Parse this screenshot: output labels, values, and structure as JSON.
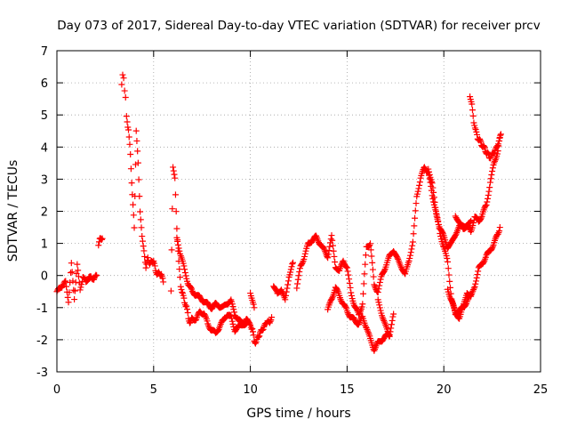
{
  "chart_data": {
    "type": "scatter",
    "title": "Day 073 of 2017, Sidereal Day-to-day VTEC variation (SDTVAR) for receiver prcv",
    "xlabel": "GPS time / hours",
    "ylabel": "SDTVAR / TECUs",
    "xlim": [
      0,
      25
    ],
    "ylim": [
      -3,
      7
    ],
    "xticks": [
      "0",
      "5",
      "10",
      "15",
      "20",
      "25"
    ],
    "yticks": [
      "-3",
      "-2",
      "-1",
      "0",
      "1",
      "2",
      "3",
      "4",
      "5",
      "6",
      "7"
    ],
    "grid": true,
    "marker": "+",
    "colors": {
      "points": "#ff0000",
      "grid": "#a0a0a0",
      "axis": "#000000"
    },
    "series": [
      {
        "name": "SDTVAR",
        "segments": [
          {
            "x": [
              0.0,
              0.15,
              0.3,
              0.45,
              0.6,
              0.75,
              0.9,
              1.05,
              1.2,
              1.35,
              1.5,
              1.65,
              1.8,
              1.95,
              2.05
            ],
            "y": [
              -0.5,
              -0.4,
              -0.3,
              -0.2,
              -0.8,
              0.35,
              -0.7,
              0.3,
              -0.4,
              -0.1,
              -0.15,
              -0.1,
              -0.05,
              -0.1,
              0.0
            ]
          },
          {
            "x": [
              2.15,
              2.25,
              2.35
            ],
            "y": [
              0.9,
              1.2,
              1.15
            ]
          },
          {
            "x": [
              3.35,
              3.4,
              3.45,
              3.5,
              3.55,
              3.6,
              3.7,
              3.8,
              3.9,
              4.0,
              4.1,
              4.2,
              4.3,
              4.4,
              4.5,
              4.6,
              4.7,
              4.8,
              4.9,
              5.0,
              5.1,
              5.2,
              5.3,
              5.4,
              5.5
            ],
            "y": [
              5.9,
              6.3,
              6.1,
              5.8,
              5.5,
              5.0,
              4.5,
              3.8,
              2.5,
              1.5,
              4.5,
              3.5,
              2.0,
              1.2,
              0.8,
              0.2,
              0.6,
              0.3,
              0.5,
              0.4,
              0.2,
              0.0,
              0.1,
              0.0,
              -0.2
            ]
          },
          {
            "x": [
              5.9,
              6.0,
              6.1,
              6.2,
              6.3,
              6.4,
              6.5,
              6.6,
              6.7,
              6.8,
              6.9,
              7.0,
              7.2,
              7.4,
              7.6,
              7.8,
              8.0,
              8.2,
              8.4,
              8.6,
              8.8,
              9.0,
              9.2,
              9.4,
              9.6,
              9.8,
              10.0,
              10.1,
              10.2,
              10.3,
              10.4,
              10.5,
              10.6,
              10.7,
              10.8,
              10.9,
              11.0,
              11.1
            ],
            "y": [
              -0.5,
              3.4,
              3.0,
              1.5,
              0.4,
              -0.3,
              -0.6,
              -0.8,
              -1.0,
              -1.3,
              -1.5,
              -1.3,
              -1.4,
              -1.1,
              -1.2,
              -1.5,
              -1.7,
              -1.8,
              -1.6,
              -1.4,
              -1.2,
              -1.3,
              -1.7,
              -1.6,
              -1.5,
              -1.4,
              -1.5,
              -1.7,
              -2.0,
              -2.1,
              -1.9,
              -1.8,
              -1.7,
              -1.6,
              -1.5,
              -1.4,
              -1.5,
              -1.3
            ]
          },
          {
            "x": [
              6.2,
              6.4,
              6.6,
              6.8,
              7.0,
              7.2,
              7.4,
              7.6,
              7.8,
              8.0,
              8.2,
              8.4,
              8.6,
              8.8,
              9.0,
              9.2,
              9.4,
              9.6,
              9.8
            ],
            "y": [
              1.2,
              0.6,
              0.2,
              -0.3,
              -0.5,
              -0.6,
              -0.7,
              -0.8,
              -0.9,
              -1.0,
              -0.9,
              -0.95,
              -1.0,
              -0.85,
              -0.8,
              -1.2,
              -1.4,
              -1.5,
              -1.5
            ]
          },
          {
            "x": [
              10.0,
              10.2
            ],
            "y": [
              -0.5,
              -1.0
            ]
          },
          {
            "x": [
              11.2,
              11.4,
              11.6,
              11.8,
              12.0,
              12.2
            ],
            "y": [
              -0.3,
              -0.6,
              -0.4,
              -0.8,
              0.0,
              0.4
            ]
          },
          {
            "x": [
              12.4,
              12.6,
              12.8,
              13.0,
              13.2,
              13.4,
              13.6,
              13.8,
              14.0,
              14.2,
              14.4,
              14.6,
              14.8,
              15.0,
              15.2,
              15.4,
              15.6,
              15.8,
              16.0,
              16.2,
              16.4,
              16.6,
              16.8,
              17.0,
              17.2,
              17.4,
              17.6,
              17.8,
              18.0,
              18.2,
              18.4,
              18.6,
              18.8,
              19.0,
              19.2,
              19.4,
              19.6,
              19.8,
              20.0,
              20.2,
              20.4,
              20.6,
              20.8,
              21.0,
              21.2,
              21.4,
              21.6,
              21.8,
              22.0,
              22.2,
              22.4,
              22.6,
              22.8,
              22.9
            ],
            "y": [
              -0.4,
              0.3,
              0.6,
              1.0,
              1.1,
              1.2,
              1.0,
              0.8,
              0.6,
              1.2,
              0.3,
              0.1,
              0.5,
              0.2,
              -0.5,
              -1.0,
              -1.2,
              -0.9,
              0.9,
              1.0,
              -0.3,
              -0.5,
              0.0,
              0.3,
              0.6,
              0.8,
              0.5,
              0.3,
              0.0,
              0.5,
              1.0,
              2.5,
              3.0,
              3.4,
              3.2,
              2.5,
              2.0,
              1.3,
              0.9,
              0.4,
              -0.7,
              -1.2,
              -1.3,
              -1.0,
              -0.5,
              -0.7,
              -0.3,
              0.2,
              0.4,
              0.6,
              0.8,
              1.0,
              1.3,
              1.5
            ]
          },
          {
            "x": [
              14.0,
              14.2,
              14.4,
              14.6,
              14.8,
              15.0,
              15.2,
              15.4,
              15.6,
              15.8,
              16.0,
              16.2,
              16.4,
              16.6,
              16.8,
              17.0,
              17.2,
              17.4
            ],
            "y": [
              -1.1,
              -0.7,
              -0.4,
              -0.6,
              -0.9,
              -1.1,
              -1.3,
              -1.4,
              -1.5,
              -1.3,
              -1.6,
              -2.0,
              -2.3,
              -2.1,
              -2.0,
              -1.9,
              -1.8,
              -1.2
            ]
          },
          {
            "x": [
              16.6,
              16.8,
              17.0,
              17.2
            ],
            "y": [
              -0.8,
              -1.2,
              -1.6,
              -1.9
            ]
          },
          {
            "x": [
              19.2,
              19.4,
              19.6,
              19.8,
              20.0,
              20.2,
              20.4,
              20.6,
              20.8,
              21.0,
              21.2,
              21.4
            ],
            "y": [
              3.3,
              2.9,
              1.9,
              1.5,
              1.2,
              0.9,
              1.0,
              1.3,
              1.5,
              1.6,
              1.5,
              1.7
            ]
          },
          {
            "x": [
              20.2,
              20.4,
              20.6,
              20.8,
              21.0,
              21.2,
              21.4
            ],
            "y": [
              -0.4,
              -0.8,
              -1.2,
              -1.1,
              -1.0,
              -0.8,
              -0.6
            ]
          },
          {
            "x": [
              20.6,
              20.8,
              21.0,
              21.2,
              21.4,
              21.6,
              21.8,
              22.0,
              22.2,
              22.4,
              22.6,
              22.8,
              22.9
            ],
            "y": [
              1.9,
              1.6,
              1.5,
              1.5,
              1.4,
              1.8,
              1.7,
              1.9,
              2.2,
              2.9,
              3.5,
              3.9,
              4.3
            ]
          },
          {
            "x": [
              21.35,
              21.45,
              21.55,
              21.65,
              21.75,
              21.85,
              21.95,
              22.05,
              22.15,
              22.25,
              22.35,
              22.45,
              22.55,
              22.65,
              22.75,
              22.85,
              22.95
            ],
            "y": [
              5.6,
              5.3,
              4.8,
              4.5,
              4.3,
              4.2,
              4.1,
              4.0,
              3.9,
              3.8,
              3.7,
              3.7,
              3.8,
              3.9,
              4.0,
              4.2,
              4.4
            ]
          }
        ]
      }
    ]
  }
}
